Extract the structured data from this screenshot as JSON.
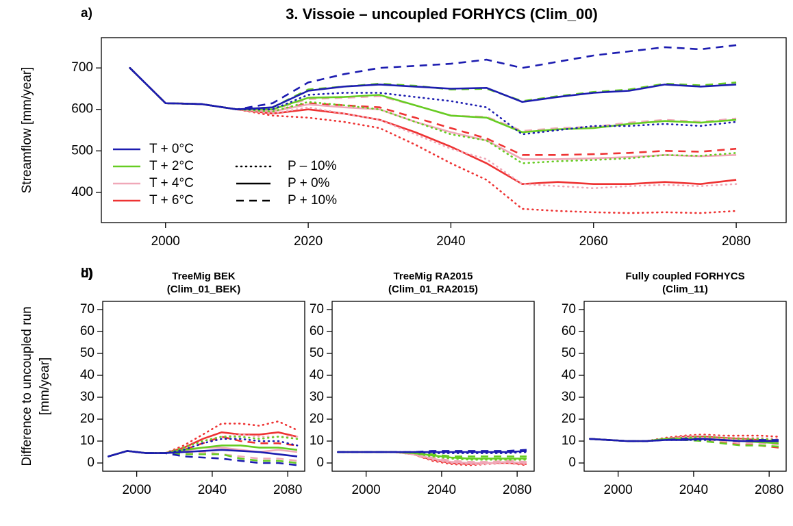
{
  "chart_data": [
    {
      "type": "line",
      "label": "a)",
      "title": "3. Vissoie – uncoupled FORHYCS (Clim_00)",
      "ylabel": "Streamflow [mm/year]",
      "x": [
        1995,
        2000,
        2005,
        2010,
        2015,
        2020,
        2025,
        2030,
        2035,
        2040,
        2045,
        2050,
        2055,
        2060,
        2065,
        2070,
        2075,
        2080
      ],
      "xlim": [
        1991,
        2087
      ],
      "xticks": [
        2000,
        2020,
        2040,
        2060,
        2080
      ],
      "ylim": [
        327,
        773
      ],
      "yticks": [
        400,
        500,
        600,
        700
      ],
      "legend": {
        "colors": [
          {
            "label": "T + 0°C",
            "color": "#1c1cb0"
          },
          {
            "label": "T + 2°C",
            "color": "#66cc22"
          },
          {
            "label": "T + 4°C",
            "color": "#f0a8b8"
          },
          {
            "label": "T + 6°C",
            "color": "#ee3333"
          }
        ],
        "linetypes": [
          {
            "label": "P – 10%",
            "dash": "dotted"
          },
          {
            "label": "P + 0%",
            "dash": "solid"
          },
          {
            "label": "P + 10%",
            "dash": "dashed"
          }
        ]
      },
      "series": [
        {
          "t": 0,
          "p": 0,
          "values": [
            700,
            615,
            613,
            600,
            600,
            635,
            640,
            640,
            630,
            620,
            605,
            540,
            550,
            560,
            560,
            565,
            560,
            570
          ]
        },
        {
          "t": 0,
          "p": 1,
          "values": [
            700,
            615,
            613,
            600,
            605,
            645,
            655,
            660,
            655,
            650,
            652,
            618,
            630,
            640,
            645,
            660,
            655,
            660
          ]
        },
        {
          "t": 0,
          "p": 2,
          "values": [
            700,
            615,
            613,
            600,
            615,
            665,
            685,
            700,
            705,
            710,
            720,
            700,
            715,
            730,
            740,
            750,
            745,
            755
          ]
        },
        {
          "t": 1,
          "p": 0,
          "values": [
            700,
            615,
            613,
            600,
            595,
            618,
            610,
            600,
            570,
            540,
            525,
            470,
            475,
            478,
            482,
            490,
            488,
            495
          ]
        },
        {
          "t": 1,
          "p": 1,
          "values": [
            700,
            615,
            613,
            600,
            600,
            628,
            630,
            635,
            610,
            585,
            580,
            545,
            552,
            555,
            565,
            572,
            568,
            575
          ]
        },
        {
          "t": 1,
          "p": 2,
          "values": [
            700,
            615,
            613,
            600,
            605,
            648,
            655,
            662,
            657,
            648,
            650,
            620,
            632,
            642,
            648,
            662,
            658,
            665
          ]
        },
        {
          "t": 2,
          "p": 0,
          "values": [
            700,
            615,
            613,
            600,
            590,
            605,
            590,
            575,
            540,
            505,
            480,
            420,
            415,
            410,
            415,
            418,
            415,
            420
          ]
        },
        {
          "t": 2,
          "p": 1,
          "values": [
            700,
            615,
            613,
            600,
            595,
            612,
            605,
            600,
            570,
            545,
            525,
            480,
            480,
            482,
            485,
            490,
            487,
            490
          ]
        },
        {
          "t": 2,
          "p": 2,
          "values": [
            700,
            615,
            613,
            600,
            600,
            625,
            628,
            632,
            610,
            585,
            582,
            548,
            555,
            558,
            568,
            575,
            570,
            578
          ]
        },
        {
          "t": 3,
          "p": 0,
          "values": [
            700,
            615,
            613,
            600,
            585,
            580,
            570,
            555,
            515,
            470,
            430,
            360,
            355,
            352,
            350,
            352,
            350,
            355
          ]
        },
        {
          "t": 3,
          "p": 1,
          "values": [
            700,
            615,
            613,
            600,
            590,
            600,
            590,
            575,
            545,
            510,
            470,
            420,
            425,
            420,
            420,
            425,
            420,
            430
          ]
        },
        {
          "t": 3,
          "p": 2,
          "values": [
            700,
            615,
            613,
            600,
            595,
            615,
            610,
            605,
            580,
            555,
            530,
            490,
            490,
            492,
            495,
            500,
            498,
            505
          ]
        }
      ]
    },
    {
      "type": "line",
      "label": "b)",
      "title": [
        "TreeMig BEK",
        "(Clim_01_BEK)"
      ],
      "ylabel": [
        "Difference to uncoupled run",
        "[mm/year]"
      ],
      "x": [
        1985,
        1995,
        2005,
        2015,
        2025,
        2035,
        2045,
        2055,
        2065,
        2075,
        2085
      ],
      "xlim": [
        1982,
        2089
      ],
      "xticks": [
        2000,
        2040,
        2080
      ],
      "ylim": [
        -3.75,
        73.75
      ],
      "yticks": [
        0,
        10,
        20,
        30,
        40,
        50,
        60,
        70
      ],
      "series": [
        {
          "t": 0,
          "p": 0,
          "values": [
            3,
            5.5,
            4.5,
            4.5,
            6,
            9,
            11,
            11,
            10,
            10,
            8
          ]
        },
        {
          "t": 0,
          "p": 1,
          "values": [
            3,
            5.5,
            4.5,
            4.5,
            5,
            5.5,
            6,
            5.5,
            5,
            4,
            3
          ]
        },
        {
          "t": 0,
          "p": 2,
          "values": [
            3,
            5.5,
            4.5,
            4.5,
            3,
            2.5,
            2,
            1,
            0,
            0,
            -1
          ]
        },
        {
          "t": 1,
          "p": 0,
          "values": [
            3,
            5.5,
            4.5,
            4.5,
            7,
            10,
            12,
            12,
            11,
            12,
            11
          ]
        },
        {
          "t": 1,
          "p": 1,
          "values": [
            3,
            5.5,
            4.5,
            4.5,
            6,
            7,
            8,
            8,
            7,
            7,
            6
          ]
        },
        {
          "t": 1,
          "p": 2,
          "values": [
            3,
            5.5,
            4.5,
            4.5,
            4,
            4,
            4,
            2,
            1,
            1,
            0
          ]
        },
        {
          "t": 2,
          "p": 0,
          "values": [
            3,
            5.5,
            4.5,
            4.5,
            7,
            10,
            12,
            13,
            12,
            12,
            12
          ]
        },
        {
          "t": 2,
          "p": 1,
          "values": [
            3,
            5.5,
            4.5,
            4.5,
            5.5,
            7,
            7,
            6,
            5,
            6,
            5
          ]
        },
        {
          "t": 2,
          "p": 2,
          "values": [
            3,
            5.5,
            4.5,
            4.5,
            4.5,
            5,
            4,
            3,
            2,
            2,
            1
          ]
        },
        {
          "t": 3,
          "p": 0,
          "values": [
            3,
            5.5,
            4.5,
            4.5,
            8,
            13,
            18,
            18,
            17,
            19,
            15
          ]
        },
        {
          "t": 3,
          "p": 1,
          "values": [
            3,
            5.5,
            4.5,
            4.5,
            7,
            11,
            14,
            13,
            13,
            14,
            12
          ]
        },
        {
          "t": 3,
          "p": 2,
          "values": [
            3,
            5.5,
            4.5,
            4.5,
            6,
            9,
            12,
            10,
            9,
            9,
            8
          ]
        }
      ]
    },
    {
      "type": "line",
      "label": "c)",
      "title": [
        "TreeMig RA2015",
        "(Clim_01_RA2015)"
      ],
      "x": [
        1985,
        1995,
        2005,
        2015,
        2025,
        2035,
        2045,
        2055,
        2065,
        2075,
        2085
      ],
      "xlim": [
        1982,
        2089
      ],
      "xticks": [
        2000,
        2040,
        2080
      ],
      "ylim": [
        -3.75,
        73.75
      ],
      "yticks": [
        0,
        10,
        20,
        30,
        40,
        50,
        60,
        70
      ],
      "series": [
        {
          "t": 0,
          "p": 0,
          "values": [
            5,
            5,
            5,
            5,
            5,
            4.5,
            4.5,
            4.5,
            4.5,
            4.5,
            5
          ]
        },
        {
          "t": 0,
          "p": 1,
          "values": [
            5,
            5,
            5,
            5,
            5,
            5,
            5,
            5,
            5,
            5,
            5.5
          ]
        },
        {
          "t": 0,
          "p": 2,
          "values": [
            5,
            5,
            5,
            5,
            5,
            5.5,
            5.5,
            5.5,
            5.5,
            5.5,
            6
          ]
        },
        {
          "t": 1,
          "p": 0,
          "values": [
            5,
            5,
            5,
            5,
            4.5,
            3,
            2,
            1.5,
            1.5,
            1.5,
            1.5
          ]
        },
        {
          "t": 1,
          "p": 1,
          "values": [
            5,
            5,
            5,
            5,
            4.5,
            3.5,
            2.5,
            2,
            2,
            2,
            2
          ]
        },
        {
          "t": 1,
          "p": 2,
          "values": [
            5,
            5,
            5,
            5,
            4.5,
            4,
            3,
            3,
            3,
            3,
            3
          ]
        },
        {
          "t": 2,
          "p": 0,
          "values": [
            5,
            5,
            5,
            5,
            4,
            1.5,
            0,
            -0.5,
            -0.5,
            0,
            -0.5
          ]
        },
        {
          "t": 2,
          "p": 1,
          "values": [
            5,
            5,
            5,
            5,
            4,
            2,
            0.5,
            0,
            0,
            0.5,
            0
          ]
        },
        {
          "t": 2,
          "p": 2,
          "values": [
            5,
            5,
            5,
            5,
            4,
            2.5,
            1,
            0.5,
            0.5,
            1,
            0.5
          ]
        },
        {
          "t": 3,
          "p": 0,
          "values": [
            5,
            5,
            5,
            5,
            4,
            1,
            -0.5,
            -1,
            -0.5,
            0,
            -1
          ]
        },
        {
          "t": 3,
          "p": 1,
          "values": [
            5,
            5,
            5,
            5,
            4,
            1.5,
            0,
            -0.5,
            0,
            0,
            -0.5
          ]
        },
        {
          "t": 3,
          "p": 2,
          "values": [
            5,
            5,
            5,
            5,
            4,
            2,
            0.5,
            0,
            0,
            0.5,
            0
          ]
        }
      ]
    },
    {
      "type": "line",
      "label": "d)",
      "title": [
        "Fully coupled FORHYCS",
        "(Clim_11)"
      ],
      "x": [
        1985,
        1995,
        2005,
        2015,
        2025,
        2035,
        2045,
        2055,
        2065,
        2075,
        2085
      ],
      "xlim": [
        1982,
        2089
      ],
      "xticks": [
        2000,
        2040,
        2080
      ],
      "ylim": [
        -3.75,
        73.75
      ],
      "yticks": [
        0,
        10,
        20,
        30,
        40,
        50,
        60,
        70
      ],
      "series": [
        {
          "t": 0,
          "p": 0,
          "values": [
            11,
            10.5,
            10,
            10,
            10.5,
            10.5,
            10.5,
            10.5,
            10,
            10,
            10
          ]
        },
        {
          "t": 0,
          "p": 1,
          "values": [
            11,
            10.5,
            10,
            10,
            10.5,
            10.5,
            11,
            10.5,
            10,
            10,
            10
          ]
        },
        {
          "t": 0,
          "p": 2,
          "values": [
            11,
            10.5,
            10,
            10,
            10.5,
            11,
            11,
            10.5,
            10,
            10.5,
            10.5
          ]
        },
        {
          "t": 1,
          "p": 0,
          "values": [
            11,
            10.5,
            10,
            10,
            11,
            11.5,
            12,
            11.5,
            11,
            11,
            10.5
          ]
        },
        {
          "t": 1,
          "p": 1,
          "values": [
            11,
            10.5,
            10,
            10,
            11,
            11,
            11,
            10.5,
            10,
            9.5,
            9
          ]
        },
        {
          "t": 1,
          "p": 2,
          "values": [
            11,
            10.5,
            10,
            10,
            11,
            10.5,
            10,
            9,
            8,
            8,
            7.5
          ]
        },
        {
          "t": 2,
          "p": 0,
          "values": [
            11,
            10.5,
            10,
            10,
            11,
            12,
            12.5,
            12,
            11.5,
            11.5,
            11
          ]
        },
        {
          "t": 2,
          "p": 1,
          "values": [
            11,
            10.5,
            10,
            10,
            11,
            11.5,
            11.5,
            11,
            10.5,
            10,
            9.5
          ]
        },
        {
          "t": 2,
          "p": 2,
          "values": [
            11,
            10.5,
            10,
            10,
            11,
            11,
            10.5,
            10,
            9,
            9,
            8.5
          ]
        },
        {
          "t": 3,
          "p": 0,
          "values": [
            11,
            10.5,
            10,
            10,
            11.5,
            12.5,
            13,
            12.5,
            12.5,
            12.5,
            12
          ]
        },
        {
          "t": 3,
          "p": 1,
          "values": [
            11,
            10.5,
            10,
            10,
            11,
            12,
            12,
            11.5,
            11,
            10.5,
            10
          ]
        },
        {
          "t": 3,
          "p": 2,
          "values": [
            11,
            10.5,
            10,
            10,
            11,
            11,
            10.5,
            9.5,
            8.5,
            8,
            7
          ]
        }
      ]
    }
  ]
}
